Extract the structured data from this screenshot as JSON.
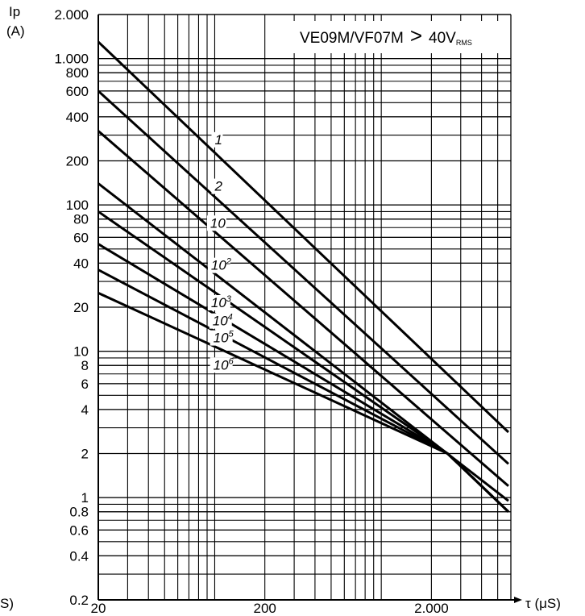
{
  "chart_data": {
    "type": "line",
    "xscale": "log",
    "yscale": "log",
    "xlim": [
      20,
      6000
    ],
    "ylim": [
      0.2,
      2000
    ],
    "grid": true,
    "ylabel_line1": "Ip",
    "ylabel_line2": "(A)",
    "xlabel": "τ (μS)",
    "xlabel_fragment": "S)",
    "legend": {
      "model": "VE09M/VF07M",
      "operator": ">",
      "voltage": "40V",
      "subscript": "RMS",
      "placement": "top-right"
    },
    "x_ticks": [
      {
        "value": 20,
        "label": "20"
      },
      {
        "value": 200,
        "label": "200"
      },
      {
        "value": 2000,
        "label": "2.000"
      }
    ],
    "y_ticks": [
      {
        "value": 2000,
        "label": "2.000"
      },
      {
        "value": 1000,
        "label": "1.000"
      },
      {
        "value": 800,
        "label": "800"
      },
      {
        "value": 600,
        "label": "600"
      },
      {
        "value": 400,
        "label": "400"
      },
      {
        "value": 200,
        "label": "200"
      },
      {
        "value": 100,
        "label": "100"
      },
      {
        "value": 80,
        "label": "80"
      },
      {
        "value": 60,
        "label": "60"
      },
      {
        "value": 40,
        "label": "40"
      },
      {
        "value": 20,
        "label": "20"
      },
      {
        "value": 10,
        "label": "10"
      },
      {
        "value": 8,
        "label": "8"
      },
      {
        "value": 6,
        "label": "6"
      },
      {
        "value": 4,
        "label": "4"
      },
      {
        "value": 2,
        "label": "2"
      },
      {
        "value": 1,
        "label": "1"
      },
      {
        "value": 0.8,
        "label": "0.8"
      },
      {
        "value": 0.6,
        "label": "0.6"
      },
      {
        "value": 0.4,
        "label": "0.4"
      },
      {
        "value": 0.2,
        "label": "0.2"
      }
    ],
    "series": [
      {
        "name_base": "1",
        "name_exp": "",
        "label_x": 100,
        "label_y": 260,
        "x": [
          20,
          5800
        ],
        "y": [
          1300,
          2.8
        ]
      },
      {
        "name_base": "2",
        "name_exp": "",
        "label_x": 100,
        "label_y": 125,
        "x": [
          20,
          5800
        ],
        "y": [
          600,
          1.7
        ]
      },
      {
        "name_base": "10",
        "name_exp": "",
        "label_x": 94,
        "label_y": 70,
        "x": [
          20,
          5800
        ],
        "y": [
          320,
          1.2
        ]
      },
      {
        "name_base": "10",
        "name_exp": "2",
        "label_x": 95,
        "label_y": 36,
        "x": [
          20,
          5800
        ],
        "y": [
          140,
          0.95
        ]
      },
      {
        "name_base": "10",
        "name_exp": "3",
        "label_x": 95,
        "label_y": 20,
        "x": [
          20,
          2500,
          5800
        ],
        "y": [
          90,
          2.0,
          0.8
        ]
      },
      {
        "name_base": "10",
        "name_exp": "4",
        "label_x": 97,
        "label_y": 15,
        "x": [
          20,
          2500,
          5800
        ],
        "y": [
          54,
          2.0,
          0.8
        ]
      },
      {
        "name_base": "10",
        "name_exp": "5",
        "label_x": 98,
        "label_y": 11.5,
        "x": [
          20,
          2500,
          5800
        ],
        "y": [
          36,
          2.0,
          0.8
        ]
      },
      {
        "name_base": "10",
        "name_exp": "6",
        "label_x": 98,
        "label_y": 7.5,
        "x": [
          20,
          2500,
          5800
        ],
        "y": [
          25,
          2.0,
          0.8
        ]
      }
    ]
  }
}
